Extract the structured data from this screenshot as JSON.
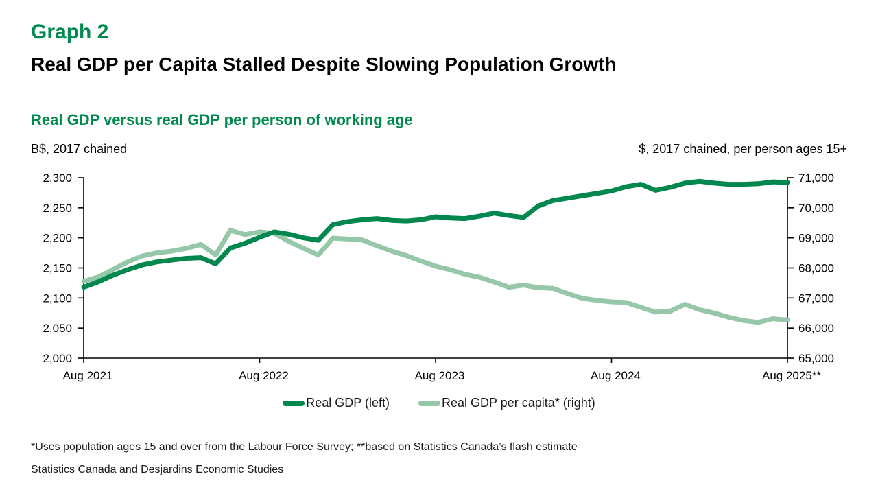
{
  "header": {
    "graph_label": "Graph 2",
    "title": "Real GDP per Capita Stalled Despite Slowing Population Growth",
    "chart_subtitle": "Real GDP versus real GDP per person of working age",
    "left_unit": "B$, 2017 chained",
    "right_unit": "$, 2017 chained, per person ages 15+"
  },
  "footnotes": {
    "line1": "*Uses population ages 15 and over from the Labour Force Survey; **based on Statistics Canada’s flash estimate",
    "line2": "Statistics Canada and Desjardins Economic Studies"
  },
  "colors": {
    "title_green": "#008A50",
    "dark_green": "#00874E",
    "light_green": "#96C7A8",
    "axis_black": "#000000"
  },
  "chart_data": {
    "type": "line",
    "title": "Real GDP versus real GDP per person of working age",
    "x_frequency": "monthly",
    "x_range": [
      "Aug 2021",
      "Aug 2025"
    ],
    "x_tick_labels": [
      "Aug 2021",
      "Aug 2022",
      "Aug 2023",
      "Aug 2024",
      "Aug 2025**"
    ],
    "left_axis": {
      "label": "B$, 2017 chained",
      "min": 2000,
      "max": 2300,
      "tick_labels_top_to_bottom": [
        "2,300",
        "2,250",
        "2,200",
        "2,150",
        "2,100",
        "2,050",
        "2,000"
      ]
    },
    "right_axis": {
      "label": "$, 2017 chained, per person ages 15+",
      "min": 65000,
      "max": 71000,
      "tick_labels_top_to_bottom": [
        "71,000",
        "70,000",
        "69,000",
        "68,000",
        "67,000",
        "66,000",
        "65,000"
      ]
    },
    "grid": false,
    "legend_position": "bottom-center",
    "series": [
      {
        "name": "Real GDP (left)",
        "axis": "left",
        "color": "#00874E",
        "values": [
          2118,
          2127,
          2138,
          2147,
          2155,
          2160,
          2163,
          2166,
          2167,
          2157,
          2183,
          2191,
          2201,
          2210,
          2206,
          2200,
          2196,
          2222,
          2227,
          2230,
          2232,
          2229,
          2228,
          2230,
          2235,
          2233,
          2232,
          2236,
          2241,
          2237,
          2234,
          2253,
          2262,
          2266,
          2270,
          2274,
          2278,
          2285,
          2289,
          2279,
          2284,
          2291,
          2294,
          2291,
          2289,
          2289,
          2290,
          2293,
          2292
        ]
      },
      {
        "name": "Real GDP per capita* (right)",
        "axis": "right",
        "color": "#96C7A8",
        "values": [
          67550,
          67700,
          67950,
          68200,
          68400,
          68500,
          68560,
          68650,
          68780,
          68430,
          69250,
          69110,
          69200,
          69150,
          68880,
          68650,
          68430,
          68990,
          68960,
          68930,
          68740,
          68560,
          68410,
          68230,
          68060,
          67940,
          67790,
          67690,
          67530,
          67360,
          67430,
          67340,
          67320,
          67150,
          66990,
          66920,
          66870,
          66850,
          66690,
          66530,
          66560,
          66790,
          66610,
          66500,
          66360,
          66250,
          66190,
          66310,
          66270
        ]
      }
    ]
  }
}
